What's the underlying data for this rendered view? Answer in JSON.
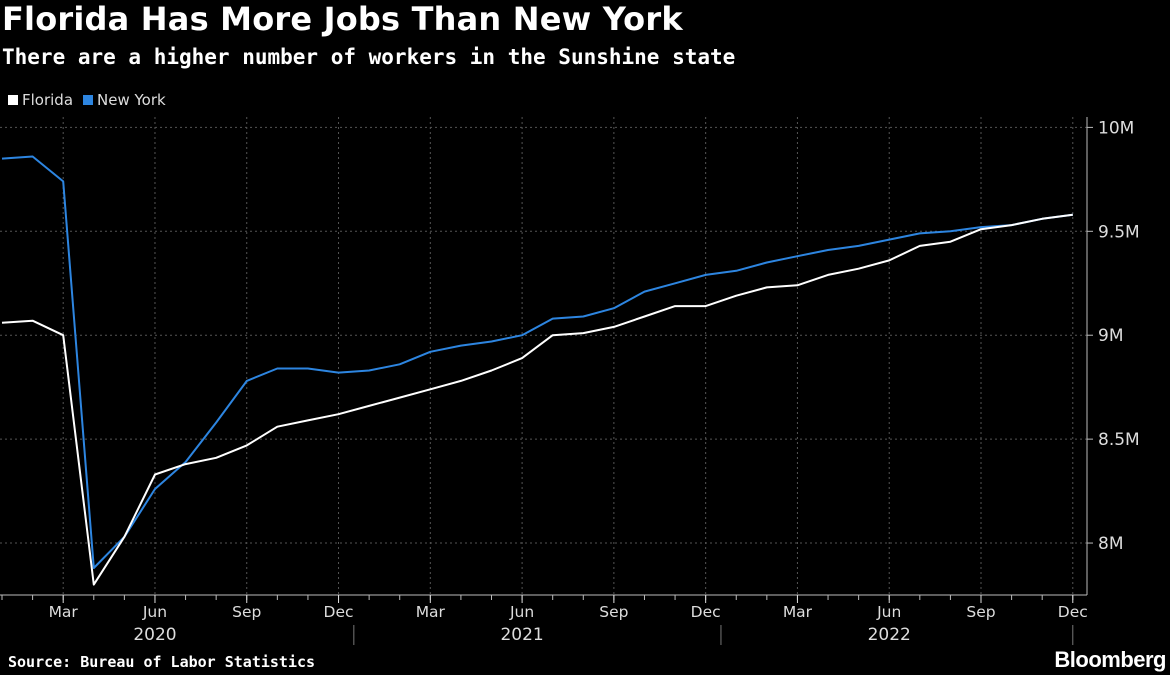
{
  "header": {
    "title": "Florida Has More Jobs Than New York",
    "subtitle": "There are a higher number of workers in the Sunshine state"
  },
  "footer": {
    "source": "Source: Bureau of Labor Statistics",
    "brand": "Bloomberg"
  },
  "colors": {
    "background": "#000000",
    "florida": "#ffffff",
    "new_york": "#2d85e0",
    "grid": "#555555"
  },
  "chart_data": {
    "type": "line",
    "title": "Florida Has More Jobs Than New York",
    "subtitle": "There are a higher number of workers in the Sunshine state",
    "x": [
      "2020-01",
      "2020-02",
      "2020-03",
      "2020-04",
      "2020-05",
      "2020-06",
      "2020-07",
      "2020-08",
      "2020-09",
      "2020-10",
      "2020-11",
      "2020-12",
      "2021-01",
      "2021-02",
      "2021-03",
      "2021-04",
      "2021-05",
      "2021-06",
      "2021-07",
      "2021-08",
      "2021-09",
      "2021-10",
      "2021-11",
      "2021-12",
      "2022-01",
      "2022-02",
      "2022-03",
      "2022-04",
      "2022-05",
      "2022-06",
      "2022-07",
      "2022-08",
      "2022-09",
      "2022-10",
      "2022-11",
      "2022-12"
    ],
    "series": [
      {
        "name": "Florida",
        "color": "#ffffff",
        "values": [
          9.06,
          9.07,
          9.0,
          7.8,
          8.03,
          8.33,
          8.38,
          8.41,
          8.47,
          8.56,
          8.59,
          8.62,
          8.66,
          8.7,
          8.74,
          8.78,
          8.83,
          8.89,
          9.0,
          9.01,
          9.04,
          9.09,
          9.14,
          9.14,
          9.19,
          9.23,
          9.24,
          9.29,
          9.32,
          9.36,
          9.43,
          9.45,
          9.51,
          9.53,
          9.56,
          9.58
        ]
      },
      {
        "name": "New York",
        "color": "#2d85e0",
        "values": [
          9.85,
          9.86,
          9.74,
          7.88,
          8.03,
          8.26,
          8.39,
          8.58,
          8.78,
          8.84,
          8.84,
          8.82,
          8.83,
          8.86,
          8.92,
          8.95,
          8.97,
          9.0,
          9.08,
          9.09,
          9.13,
          9.21,
          9.25,
          9.29,
          9.31,
          9.35,
          9.38,
          9.41,
          9.43,
          9.46,
          9.49,
          9.5,
          9.52,
          9.53,
          9.56,
          9.58
        ]
      }
    ],
    "ylim": [
      7.75,
      10.05
    ],
    "yticks": [
      {
        "value": 8.0,
        "label": "8M"
      },
      {
        "value": 8.5,
        "label": "8.5M"
      },
      {
        "value": 9.0,
        "label": "9M"
      },
      {
        "value": 9.5,
        "label": "9.5M"
      },
      {
        "value": 10.0,
        "label": "10M"
      }
    ],
    "xticks": [
      {
        "month": "2020-03",
        "label": "Mar"
      },
      {
        "month": "2020-06",
        "label": "Jun"
      },
      {
        "month": "2020-09",
        "label": "Sep"
      },
      {
        "month": "2020-12",
        "label": "Dec"
      },
      {
        "month": "2021-03",
        "label": "Mar"
      },
      {
        "month": "2021-06",
        "label": "Jun"
      },
      {
        "month": "2021-09",
        "label": "Sep"
      },
      {
        "month": "2021-12",
        "label": "Dec"
      },
      {
        "month": "2022-03",
        "label": "Mar"
      },
      {
        "month": "2022-06",
        "label": "Jun"
      },
      {
        "month": "2022-09",
        "label": "Sep"
      },
      {
        "month": "2022-12",
        "label": "Dec"
      }
    ],
    "year_labels": [
      {
        "month": "2020-06",
        "label": "2020"
      },
      {
        "month": "2021-06",
        "label": "2021"
      },
      {
        "month": "2022-06",
        "label": "2022"
      }
    ],
    "legend_position": "top-left",
    "grid": true,
    "y_axis_side": "right"
  }
}
